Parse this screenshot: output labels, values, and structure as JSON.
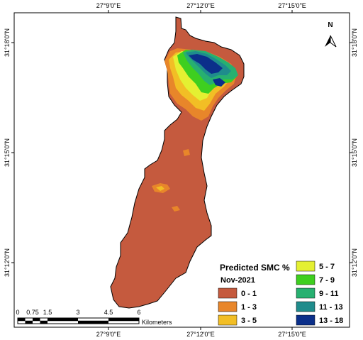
{
  "map": {
    "lon_labels": [
      "27°9'0\"E",
      "27°12'0\"E",
      "27°15'0\"E"
    ],
    "lat_labels": [
      "31°18'0\"N",
      "31°15'0\"N",
      "31°12'0\"N"
    ],
    "north_label": "N",
    "colors": {
      "frame": "#000000",
      "background": "#ffffff",
      "base_fill": "#c55a3e"
    }
  },
  "legend": {
    "title": "Predicted SMC %",
    "subtitle": "Nov-2021",
    "classes": [
      {
        "label": "0 - 1",
        "color": "#c55a3e"
      },
      {
        "label": "1 - 3",
        "color": "#e8862a"
      },
      {
        "label": "3 - 5",
        "color": "#f2be25"
      },
      {
        "label": "5 - 7",
        "color": "#e4f032"
      },
      {
        "label": "7 - 9",
        "color": "#3ecf1f"
      },
      {
        "label": "9 - 11",
        "color": "#27b070"
      },
      {
        "label": "11 - 13",
        "color": "#1f8c8c"
      },
      {
        "label": "13 - 18",
        "color": "#0b2f8a"
      }
    ]
  },
  "scalebar": {
    "ticks": [
      "0",
      "0.75",
      "1.5",
      "3",
      "4.5",
      "6"
    ],
    "unit": "Kilometers"
  }
}
